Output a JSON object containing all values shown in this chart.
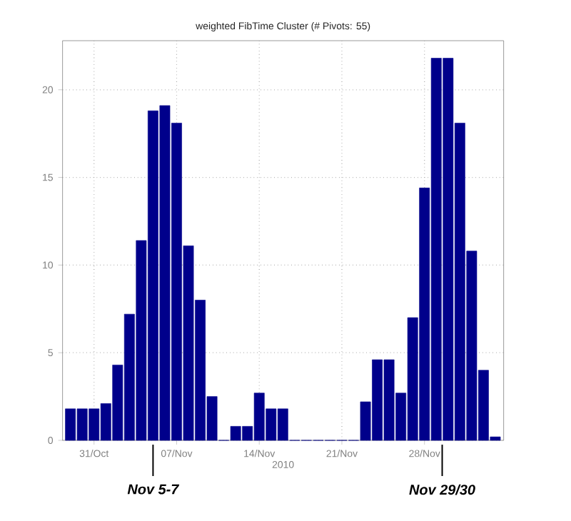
{
  "chart_data": {
    "type": "bar",
    "title": "weighted FibTime Cluster (# Pivots: 55)",
    "xlabel": "2010",
    "x": [
      "2010-10-29",
      "2010-10-30",
      "2010-10-31",
      "2010-11-01",
      "2010-11-02",
      "2010-11-03",
      "2010-11-04",
      "2010-11-05",
      "2010-11-06",
      "2010-11-07",
      "2010-11-08",
      "2010-11-09",
      "2010-11-10",
      "2010-11-11",
      "2010-11-12",
      "2010-11-13",
      "2010-11-14",
      "2010-11-15",
      "2010-11-16",
      "2010-11-17",
      "2010-11-18",
      "2010-11-19",
      "2010-11-20",
      "2010-11-21",
      "2010-11-22",
      "2010-11-23",
      "2010-11-24",
      "2010-11-25",
      "2010-11-26",
      "2010-11-27",
      "2010-11-28",
      "2010-11-29",
      "2010-11-30",
      "2010-12-01",
      "2010-12-02",
      "2010-12-03",
      "2010-12-04"
    ],
    "values": [
      1.8,
      1.8,
      1.8,
      2.1,
      4.3,
      7.2,
      11.4,
      18.8,
      19.1,
      18.1,
      11.1,
      8.0,
      2.5,
      0,
      0.8,
      0.8,
      2.7,
      1.8,
      1.8,
      0,
      0,
      0,
      0,
      0,
      0,
      2.2,
      4.6,
      4.6,
      2.7,
      7.0,
      14.4,
      21.8,
      21.8,
      18.1,
      10.8,
      4.0,
      0.2
    ],
    "color": "#00008b",
    "xlim": [
      "2010-10-28T08:00",
      "2010-12-04T17:00"
    ],
    "xticks": [
      {
        "value": "2010-10-31",
        "label": "31/Oct"
      },
      {
        "value": "2010-11-07",
        "label": "07/Nov"
      },
      {
        "value": "2010-11-14",
        "label": "14/Nov"
      },
      {
        "value": "2010-11-21",
        "label": "21/Nov"
      },
      {
        "value": "2010-11-28",
        "label": "28/Nov"
      }
    ],
    "ylim": [
      0,
      22.8
    ],
    "yticks": [
      0,
      5,
      10,
      15,
      20
    ],
    "grid": true,
    "annotations": [
      {
        "text": "Nov 5-7",
        "x": "2010-11-05",
        "y": 0
      },
      {
        "text": "Nov 29/30",
        "x": "2010-11-29T12:00",
        "y": 0
      }
    ]
  }
}
